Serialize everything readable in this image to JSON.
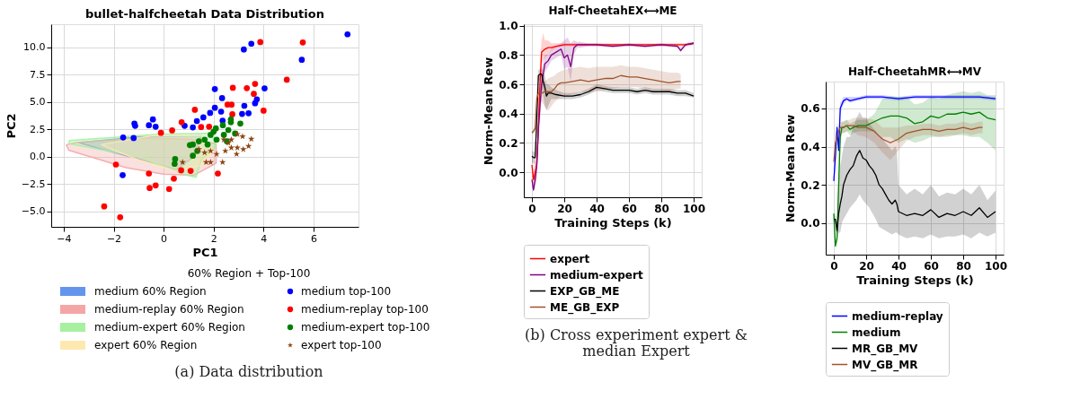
{
  "chart_data": [
    {
      "type": "scatter",
      "title": "bullet-halfcheetah Data Distribution",
      "xlabel": "PC1",
      "ylabel": "PC2",
      "legend_title": "60% Region + Top-100",
      "legend": "bottom",
      "grid": true,
      "xlim": [
        -4.5,
        7.8
      ],
      "ylim": [
        -6.4,
        12.1
      ],
      "xticks": [
        -4,
        -2,
        0,
        2,
        4,
        6
      ],
      "yticks": [
        {
          "value": -5,
          "label": "−5.0"
        },
        {
          "value": -2.5,
          "label": "−2.5"
        },
        {
          "value": 0,
          "label": "0.0"
        },
        {
          "value": 2.5,
          "label": "2.5"
        },
        {
          "value": 5,
          "label": "5.0"
        },
        {
          "value": 7.5,
          "label": "7.5"
        },
        {
          "value": 10,
          "label": "10.0"
        }
      ],
      "annotations": [
        "(a) Data distribution"
      ],
      "series": [
        {
          "name": "medium 60% Region",
          "type": "area",
          "color": "#6495ed",
          "x": [
            -3.4,
            -1.0,
            1.5,
            1.2,
            0.5,
            -0.5,
            -2.5
          ],
          "values": [
            1.3,
            1.8,
            1.9,
            0.0,
            -1.2,
            -0.5,
            0.7
          ]
        },
        {
          "name": "medium-replay 60% Region",
          "type": "area",
          "color": "#f4a6a6",
          "x": [
            -3.9,
            -3.5,
            -1.0,
            1.0,
            2.1,
            2.1,
            1.2,
            0.0,
            -1.5,
            -3.8
          ],
          "values": [
            1.1,
            1.3,
            1.7,
            1.6,
            1.2,
            -0.6,
            -1.7,
            -1.6,
            -1.0,
            0.6
          ]
        },
        {
          "name": "medium-expert 60% Region",
          "type": "area",
          "color": "#a6f0a0",
          "x": [
            -3.78,
            -0.25,
            1.9,
            2.1,
            1.5,
            1.3,
            0.9,
            -1.0,
            -3.78
          ],
          "values": [
            1.47,
            2.06,
            2.15,
            1.0,
            -0.3,
            -1.88,
            -1.68,
            0.0,
            1.2
          ]
        },
        {
          "name": "expert 60% Region",
          "type": "area",
          "color": "#fde9b0",
          "x": [
            -2.5,
            -0.5,
            1.5,
            2.0,
            1.5,
            0.5,
            -1.0
          ],
          "values": [
            1.1,
            1.9,
            1.9,
            0.5,
            -0.8,
            -1.3,
            -0.3
          ]
        },
        {
          "name": "medium top-100",
          "type": "scatter",
          "marker": "circle",
          "color": "#0000ff",
          "x": [
            7.36,
            3.21,
            3.51,
            5.53,
            4.04,
            2.05,
            2.34,
            3.73,
            3.23,
            3.14,
            3.4,
            2.05,
            1.86,
            2.3,
            1.59,
            1.33,
            1.17,
            0.84,
            -0.43,
            -0.59,
            -0.32,
            -1.17,
            -1.14,
            -1.62,
            -1.64,
            -1.2,
            2.36,
            3.66
          ],
          "values": [
            11.18,
            9.79,
            10.32,
            8.85,
            6.24,
            6.18,
            5.35,
            5.24,
            4.65,
            3.91,
            3.97,
            4.47,
            4.0,
            4.12,
            3.59,
            3.26,
            2.68,
            2.82,
            3.41,
            2.88,
            2.74,
            3.03,
            2.82,
            1.76,
            -1.68,
            1.71,
            3.29,
            4.88
          ]
        },
        {
          "name": "medium-replay top-100",
          "type": "scatter",
          "marker": "circle",
          "color": "#ff0000",
          "x": [
            3.87,
            5.57,
            4.93,
            2.77,
            3.33,
            3.66,
            3.61,
            2.56,
            2.72,
            4.0,
            2.75,
            1.25,
            0.72,
            0.34,
            -0.11,
            -1.91,
            -0.59,
            0.41,
            -0.32,
            -0.56,
            0.22,
            -2.38,
            -1.74,
            2.17,
            1.08,
            1.5,
            1.82,
            0.7
          ],
          "values": [
            10.47,
            10.44,
            7.03,
            6.29,
            6.26,
            6.65,
            5.74,
            4.76,
            4.76,
            4.21,
            3.88,
            4.29,
            3.15,
            2.41,
            2.18,
            -0.71,
            -1.53,
            -2.0,
            -2.62,
            -2.85,
            -2.94,
            -4.53,
            -5.53,
            -1.53,
            -1.29,
            2.71,
            2.74,
            -1.24
          ]
        },
        {
          "name": "medium-expert top-100",
          "type": "scatter",
          "marker": "circle",
          "color": "#008000",
          "x": [
            3.07,
            2.69,
            2.69,
            2.86,
            2.37,
            2.09,
            1.88,
            1.64,
            1.41,
            1.17,
            1.05,
            2.12,
            2.41,
            2.53,
            1.76,
            1.35,
            1.17,
            0.46,
            0.44,
            2.0,
            2.59
          ],
          "values": [
            3.03,
            3.15,
            3.41,
            2.12,
            2.88,
            2.59,
            2.0,
            1.56,
            1.41,
            1.12,
            1.06,
            1.56,
            2.0,
            1.41,
            1.12,
            0.53,
            0.09,
            -0.21,
            -0.65,
            2.29,
            2.44
          ]
        },
        {
          "name": "expert top-100",
          "type": "scatter",
          "marker": "star",
          "color": "#8b4513",
          "x": [
            3.51,
            3.16,
            2.95,
            3.4,
            3.19,
            2.92,
            2.71,
            2.47,
            2.36,
            1.88,
            1.7,
            0.76,
            2.12,
            1.88,
            1.64,
            1.41,
            2.59,
            2.95,
            2.41,
            2.71
          ],
          "values": [
            1.62,
            1.85,
            2.06,
            0.97,
            0.68,
            0.24,
            0.82,
            0.53,
            -0.5,
            -0.5,
            -0.5,
            -0.5,
            0.24,
            0.53,
            0.38,
            0.68,
            1.26,
            0.82,
            1.56,
            1.56
          ]
        }
      ]
    },
    {
      "type": "line",
      "title": "Half-CheetahEX⟷ME",
      "xlabel": "Training Steps (k)",
      "ylabel": "Norm-Mean Rew",
      "legend": "bottom",
      "grid": true,
      "xlim": [
        -5,
        105
      ],
      "ylim": [
        -0.17,
        1.01
      ],
      "xticks": [
        0,
        20,
        40,
        60,
        80,
        100
      ],
      "yticks": [
        {
          "value": 0,
          "label": "0.0"
        },
        {
          "value": 0.2,
          "label": "0.2"
        },
        {
          "value": 0.4,
          "label": "0.4"
        },
        {
          "value": 0.6,
          "label": "0.6"
        },
        {
          "value": 0.8,
          "label": "0.8"
        },
        {
          "value": 1,
          "label": "1.0"
        }
      ],
      "annotations": [
        "(b) Cross experiment expert & median Expert"
      ],
      "series": [
        {
          "name": "expert",
          "color": "#ff0000",
          "x": [
            0,
            1,
            2,
            3,
            4,
            5,
            6,
            7,
            8,
            10,
            12,
            15,
            20,
            25,
            30,
            35,
            40,
            45,
            50,
            55,
            60,
            65,
            70,
            75,
            80,
            85,
            90,
            95,
            100
          ],
          "values": [
            0.05,
            -0.05,
            0.0,
            0.05,
            0.3,
            0.6,
            0.82,
            0.83,
            0.84,
            0.85,
            0.85,
            0.86,
            0.87,
            0.87,
            0.87,
            0.87,
            0.87,
            0.87,
            0.87,
            0.87,
            0.87,
            0.87,
            0.87,
            0.87,
            0.87,
            0.87,
            0.87,
            0.87,
            0.88
          ],
          "lower": [
            -0.02,
            -0.1,
            -0.08,
            -0.05,
            0.15,
            0.45,
            0.74,
            0.76,
            0.78,
            0.8,
            0.83,
            0.85,
            0.86,
            0.86,
            0.86,
            0.86,
            0.86,
            0.86,
            0.86,
            0.86,
            0.86,
            0.86,
            0.86,
            0.86,
            0.86,
            0.86,
            0.86,
            0.86,
            0.87
          ],
          "upper": [
            0.12,
            0.0,
            0.08,
            0.15,
            0.45,
            0.75,
            0.9,
            0.95,
            0.9,
            0.9,
            0.88,
            0.88,
            0.88,
            0.88,
            0.88,
            0.88,
            0.88,
            0.88,
            0.88,
            0.88,
            0.88,
            0.88,
            0.88,
            0.88,
            0.88,
            0.88,
            0.88,
            0.88,
            0.89
          ]
        },
        {
          "name": "medium-expert",
          "color": "#800080",
          "x": [
            0,
            1,
            2,
            3,
            4,
            5,
            6,
            8,
            10,
            12,
            15,
            18,
            20,
            22,
            24,
            26,
            28,
            30,
            35,
            40,
            50,
            60,
            70,
            80,
            90,
            92,
            95,
            100
          ],
          "values": [
            -0.05,
            -0.12,
            -0.05,
            0.05,
            0.3,
            0.45,
            0.6,
            0.74,
            0.76,
            0.8,
            0.82,
            0.84,
            0.78,
            0.8,
            0.72,
            0.85,
            0.87,
            0.87,
            0.87,
            0.87,
            0.86,
            0.87,
            0.86,
            0.87,
            0.86,
            0.83,
            0.87,
            0.88
          ],
          "lower": [
            -0.1,
            -0.13,
            -0.1,
            0.0,
            0.2,
            0.35,
            0.5,
            0.68,
            0.72,
            0.76,
            0.78,
            0.8,
            0.7,
            0.72,
            0.62,
            0.8,
            0.85,
            0.85,
            0.86,
            0.86,
            0.85,
            0.86,
            0.85,
            0.86,
            0.85,
            0.82,
            0.86,
            0.87
          ],
          "upper": [
            0.0,
            -0.1,
            0.0,
            0.1,
            0.4,
            0.55,
            0.7,
            0.8,
            0.8,
            0.84,
            0.86,
            0.88,
            0.9,
            0.92,
            0.88,
            0.9,
            0.89,
            0.89,
            0.88,
            0.88,
            0.87,
            0.88,
            0.87,
            0.88,
            0.87,
            0.85,
            0.88,
            0.89
          ]
        },
        {
          "name": "EXP_GB_ME",
          "color": "#000000",
          "x": [
            0,
            1,
            2,
            3,
            4,
            5,
            6,
            7,
            8,
            9,
            10,
            12,
            15,
            20,
            25,
            30,
            35,
            40,
            45,
            50,
            55,
            60,
            65,
            70,
            75,
            80,
            85,
            90,
            95,
            100
          ],
          "values": [
            0.11,
            0.1,
            0.1,
            0.35,
            0.66,
            0.67,
            0.67,
            0.62,
            0.58,
            0.52,
            0.54,
            0.54,
            0.53,
            0.52,
            0.52,
            0.53,
            0.55,
            0.58,
            0.57,
            0.56,
            0.56,
            0.56,
            0.55,
            0.56,
            0.55,
            0.55,
            0.55,
            0.54,
            0.54,
            0.52
          ],
          "lower": [
            0.07,
            0.06,
            0.06,
            0.28,
            0.62,
            0.63,
            0.6,
            0.52,
            0.45,
            0.42,
            0.45,
            0.5,
            0.5,
            0.5,
            0.5,
            0.51,
            0.53,
            0.56,
            0.55,
            0.54,
            0.54,
            0.54,
            0.53,
            0.54,
            0.53,
            0.53,
            0.53,
            0.52,
            0.52,
            0.51
          ],
          "upper": [
            0.15,
            0.14,
            0.14,
            0.42,
            0.7,
            0.7,
            0.72,
            0.68,
            0.66,
            0.6,
            0.6,
            0.58,
            0.56,
            0.54,
            0.54,
            0.55,
            0.57,
            0.6,
            0.59,
            0.58,
            0.58,
            0.58,
            0.57,
            0.58,
            0.57,
            0.57,
            0.57,
            0.56,
            0.56,
            0.54
          ]
        },
        {
          "name": "ME_GB_EXP",
          "color": "#a0522d",
          "x": [
            0,
            1,
            2,
            3,
            4,
            5,
            6,
            8,
            10,
            12,
            14,
            16,
            18,
            20,
            25,
            30,
            35,
            40,
            45,
            50,
            55,
            60,
            65,
            70,
            75,
            80,
            85,
            90,
            92
          ],
          "values": [
            0.27,
            0.28,
            0.3,
            0.5,
            0.54,
            0.54,
            0.54,
            0.55,
            0.55,
            0.55,
            0.57,
            0.6,
            0.61,
            0.61,
            0.62,
            0.63,
            0.62,
            0.63,
            0.64,
            0.64,
            0.66,
            0.65,
            0.65,
            0.64,
            0.63,
            0.62,
            0.61,
            0.62,
            0.62
          ],
          "lower": [
            0.26,
            0.26,
            0.28,
            0.45,
            0.5,
            0.5,
            0.48,
            0.45,
            0.42,
            0.45,
            0.48,
            0.5,
            0.52,
            0.52,
            0.53,
            0.55,
            0.54,
            0.55,
            0.56,
            0.57,
            0.58,
            0.58,
            0.58,
            0.57,
            0.56,
            0.56,
            0.55,
            0.57,
            0.57
          ],
          "upper": [
            0.28,
            0.3,
            0.32,
            0.55,
            0.58,
            0.58,
            0.6,
            0.62,
            0.64,
            0.65,
            0.66,
            0.68,
            0.69,
            0.7,
            0.71,
            0.72,
            0.71,
            0.72,
            0.72,
            0.72,
            0.73,
            0.72,
            0.72,
            0.71,
            0.7,
            0.69,
            0.68,
            0.68,
            0.67
          ]
        }
      ]
    },
    {
      "type": "line",
      "title": "Half-CheetahMR⟷MV",
      "xlabel": "Training Steps (k)",
      "ylabel": "Norm-Mean Rew",
      "legend": "bottom",
      "grid": true,
      "xlim": [
        -5,
        105
      ],
      "ylim": [
        -0.165,
        0.74
      ],
      "xticks": [
        0,
        20,
        40,
        60,
        80,
        100
      ],
      "yticks": [
        {
          "value": 0,
          "label": "0.0"
        },
        {
          "value": 0.2,
          "label": "0.2"
        },
        {
          "value": 0.4,
          "label": "0.4"
        },
        {
          "value": 0.6,
          "label": "0.6"
        }
      ],
      "series": [
        {
          "name": "medium-replay",
          "color": "#0000ff",
          "x": [
            0,
            1,
            2,
            3,
            4,
            5,
            6,
            8,
            10,
            15,
            20,
            30,
            40,
            50,
            60,
            70,
            80,
            90,
            100
          ],
          "values": [
            0.22,
            0.35,
            0.5,
            0.38,
            0.6,
            0.62,
            0.64,
            0.65,
            0.64,
            0.65,
            0.66,
            0.66,
            0.65,
            0.66,
            0.66,
            0.66,
            0.66,
            0.66,
            0.65
          ],
          "lower": [
            0.2,
            0.3,
            0.45,
            0.33,
            0.56,
            0.6,
            0.62,
            0.64,
            0.63,
            0.64,
            0.65,
            0.65,
            0.64,
            0.65,
            0.65,
            0.65,
            0.65,
            0.65,
            0.64
          ],
          "upper": [
            0.25,
            0.4,
            0.53,
            0.45,
            0.63,
            0.64,
            0.66,
            0.66,
            0.66,
            0.66,
            0.67,
            0.67,
            0.66,
            0.67,
            0.67,
            0.67,
            0.67,
            0.67,
            0.66
          ]
        },
        {
          "name": "medium",
          "color": "#008000",
          "x": [
            0,
            1,
            2,
            3,
            4,
            5,
            6,
            8,
            10,
            12,
            15,
            20,
            25,
            30,
            35,
            40,
            45,
            50,
            55,
            60,
            65,
            70,
            75,
            80,
            85,
            90,
            95,
            100
          ],
          "values": [
            0.05,
            -0.12,
            -0.08,
            0.2,
            0.45,
            0.5,
            0.5,
            0.51,
            0.49,
            0.5,
            0.51,
            0.51,
            0.53,
            0.55,
            0.56,
            0.56,
            0.55,
            0.52,
            0.53,
            0.56,
            0.55,
            0.57,
            0.57,
            0.58,
            0.57,
            0.58,
            0.55,
            0.54
          ],
          "lower": [
            0.0,
            -0.13,
            -0.1,
            0.1,
            0.4,
            0.47,
            0.47,
            0.48,
            0.46,
            0.47,
            0.48,
            0.48,
            0.48,
            0.45,
            0.45,
            0.42,
            0.44,
            0.42,
            0.43,
            0.45,
            0.45,
            0.45,
            0.46,
            0.46,
            0.45,
            0.45,
            0.42,
            0.38
          ],
          "upper": [
            0.08,
            -0.1,
            -0.05,
            0.3,
            0.5,
            0.53,
            0.53,
            0.54,
            0.52,
            0.53,
            0.54,
            0.54,
            0.57,
            0.65,
            0.66,
            0.66,
            0.66,
            0.62,
            0.63,
            0.66,
            0.65,
            0.67,
            0.68,
            0.69,
            0.68,
            0.69,
            0.67,
            0.67
          ]
        },
        {
          "name": "MR_GB_MV",
          "color": "#000000",
          "x": [
            0,
            1,
            2,
            3,
            4,
            5,
            6,
            8,
            10,
            12,
            14,
            16,
            18,
            20,
            22,
            24,
            26,
            28,
            30,
            32,
            34,
            36,
            38,
            39,
            40,
            45,
            50,
            55,
            60,
            65,
            70,
            75,
            80,
            85,
            90,
            95,
            100
          ],
          "values": [
            0.02,
            0.02,
            -0.04,
            0.05,
            0.1,
            0.14,
            0.2,
            0.25,
            0.28,
            0.3,
            0.35,
            0.38,
            0.34,
            0.33,
            0.3,
            0.28,
            0.25,
            0.2,
            0.18,
            0.15,
            0.12,
            0.1,
            0.12,
            0.1,
            0.06,
            0.04,
            0.05,
            0.04,
            0.07,
            0.03,
            0.05,
            0.04,
            0.06,
            0.04,
            0.08,
            0.03,
            0.06
          ],
          "lower": [
            0.0,
            0.0,
            -0.08,
            -0.05,
            -0.05,
            0.0,
            0.02,
            0.05,
            0.08,
            0.1,
            0.12,
            0.15,
            0.12,
            0.1,
            0.08,
            0.05,
            0.02,
            -0.02,
            -0.03,
            -0.04,
            -0.05,
            -0.06,
            -0.05,
            -0.05,
            -0.06,
            -0.08,
            -0.07,
            -0.08,
            -0.06,
            -0.08,
            -0.07,
            -0.07,
            -0.06,
            -0.08,
            -0.05,
            -0.07,
            -0.05
          ],
          "upper": [
            0.04,
            0.04,
            0.0,
            0.2,
            0.3,
            0.35,
            0.4,
            0.45,
            0.45,
            0.5,
            0.55,
            0.58,
            0.55,
            0.55,
            0.52,
            0.5,
            0.48,
            0.45,
            0.45,
            0.42,
            0.4,
            0.38,
            0.4,
            0.38,
            0.2,
            0.15,
            0.18,
            0.15,
            0.2,
            0.14,
            0.16,
            0.15,
            0.18,
            0.15,
            0.2,
            0.12,
            0.17
          ]
        },
        {
          "name": "MV_GB_MR",
          "color": "#a0522d",
          "x": [
            0,
            1,
            2,
            3,
            4,
            6,
            8,
            10,
            12,
            15,
            20,
            25,
            30,
            35,
            40,
            45,
            50,
            55,
            60,
            65,
            70,
            75,
            80,
            85,
            90,
            92
          ],
          "values": [
            0.32,
            0.42,
            0.45,
            0.48,
            0.5,
            0.5,
            0.51,
            0.51,
            0.51,
            0.5,
            0.5,
            0.48,
            0.44,
            0.42,
            0.44,
            0.47,
            0.48,
            0.49,
            0.49,
            0.48,
            0.49,
            0.49,
            0.5,
            0.49,
            0.5,
            0.5
          ],
          "lower": [
            0.3,
            0.38,
            0.42,
            0.45,
            0.47,
            0.47,
            0.48,
            0.48,
            0.48,
            0.46,
            0.45,
            0.42,
            0.37,
            0.33,
            0.38,
            0.43,
            0.45,
            0.46,
            0.46,
            0.45,
            0.46,
            0.46,
            0.47,
            0.46,
            0.47,
            0.47
          ],
          "upper": [
            0.34,
            0.46,
            0.48,
            0.51,
            0.53,
            0.53,
            0.54,
            0.54,
            0.55,
            0.55,
            0.55,
            0.54,
            0.5,
            0.5,
            0.5,
            0.51,
            0.51,
            0.52,
            0.52,
            0.51,
            0.52,
            0.52,
            0.53,
            0.52,
            0.53,
            0.53
          ]
        }
      ]
    }
  ]
}
